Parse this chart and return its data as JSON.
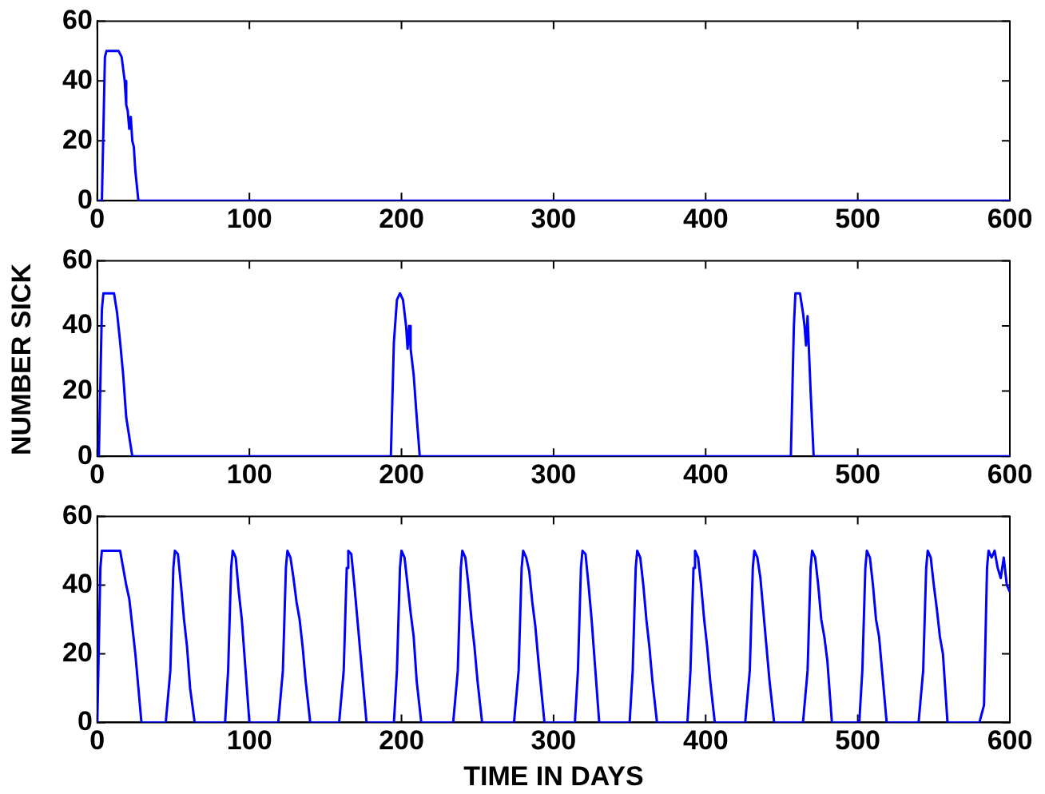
{
  "chart_data": [
    {
      "type": "line",
      "xlim": [
        0,
        600
      ],
      "xticks": [
        0,
        100,
        200,
        300,
        400,
        500,
        600
      ],
      "ylim": [
        0,
        60
      ],
      "yticks": [
        0,
        20,
        40,
        60
      ],
      "grid": false,
      "legend": false,
      "marker": "none",
      "series": [
        {
          "color": "#0000ff",
          "x": [
            0,
            3,
            5,
            6,
            14,
            16,
            18,
            19,
            20,
            21,
            22,
            23,
            24,
            25,
            27,
            600
          ],
          "values": [
            0,
            0,
            48,
            50,
            50,
            48,
            40,
            32,
            30,
            24,
            28,
            20,
            18,
            10,
            0,
            0
          ]
        }
      ]
    },
    {
      "type": "line",
      "ylabel": "NUMBER SICK",
      "xlim": [
        0,
        600
      ],
      "xticks": [
        0,
        100,
        200,
        300,
        400,
        500,
        600
      ],
      "ylim": [
        0,
        60
      ],
      "yticks": [
        0,
        20,
        40,
        60
      ],
      "grid": false,
      "legend": false,
      "marker": "none",
      "series": [
        {
          "color": "#0000ff",
          "x": [
            0,
            1,
            3,
            4,
            11,
            13,
            15,
            17,
            19,
            23,
            193,
            195,
            197,
            199,
            201,
            203,
            204,
            205,
            206,
            208,
            210,
            212,
            456,
            458,
            459,
            462,
            464,
            465,
            466,
            467,
            469,
            471,
            600
          ],
          "values": [
            0,
            0,
            45,
            50,
            50,
            44,
            35,
            25,
            12,
            0,
            0,
            35,
            48,
            50,
            48,
            40,
            33,
            40,
            33,
            25,
            12,
            0,
            0,
            40,
            50,
            50,
            44,
            40,
            34,
            43,
            20,
            0,
            0
          ]
        }
      ]
    },
    {
      "type": "line",
      "xlabel": "TIME IN DAYS",
      "xlim": [
        0,
        600
      ],
      "xticks": [
        0,
        100,
        200,
        300,
        400,
        500,
        600
      ],
      "ylim": [
        0,
        60
      ],
      "yticks": [
        0,
        20,
        40,
        60
      ],
      "grid": false,
      "legend": false,
      "marker": "none",
      "series": [
        {
          "color": "#0000ff",
          "x": [
            0,
            2,
            3,
            15,
            17,
            19,
            21,
            23,
            25,
            29,
            45,
            48,
            50,
            51,
            53,
            55,
            57,
            59,
            61,
            64,
            84,
            86,
            88,
            89,
            91,
            93,
            95,
            97,
            100,
            119,
            122,
            124,
            125,
            127,
            129,
            131,
            133,
            135,
            137,
            140,
            159,
            162,
            164,
            165,
            167,
            169,
            171,
            173,
            177,
            195,
            197,
            199,
            200,
            202,
            204,
            206,
            208,
            210,
            213,
            234,
            237,
            239,
            240,
            242,
            244,
            246,
            248,
            250,
            253,
            274,
            277,
            279,
            280,
            282,
            284,
            286,
            288,
            290,
            294,
            314,
            316,
            318,
            319,
            321,
            323,
            325,
            327,
            330,
            350,
            352,
            354,
            355,
            357,
            359,
            361,
            363,
            365,
            368,
            388,
            390,
            392,
            393,
            395,
            397,
            399,
            401,
            403,
            406,
            426,
            429,
            431,
            432,
            434,
            436,
            438,
            440,
            442,
            445,
            464,
            467,
            469,
            470,
            472,
            474,
            476,
            478,
            480,
            483,
            501,
            503,
            505,
            506,
            508,
            510,
            512,
            514,
            516,
            519,
            540,
            543,
            545,
            546,
            548,
            550,
            552,
            554,
            556,
            559,
            580,
            583,
            585,
            586,
            588,
            590,
            592,
            594,
            596,
            598,
            600
          ],
          "values": [
            0,
            45,
            50,
            50,
            45,
            40,
            36,
            28,
            20,
            0,
            0,
            15,
            45,
            50,
            49,
            40,
            30,
            22,
            10,
            0,
            0,
            15,
            45,
            50,
            48,
            38,
            30,
            18,
            0,
            0,
            15,
            45,
            50,
            48,
            42,
            35,
            30,
            22,
            12,
            0,
            0,
            15,
            45,
            50,
            49,
            40,
            30,
            20,
            0,
            0,
            15,
            45,
            50,
            48,
            40,
            32,
            25,
            12,
            0,
            0,
            15,
            45,
            50,
            48,
            40,
            30,
            22,
            12,
            0,
            0,
            15,
            45,
            50,
            48,
            44,
            35,
            28,
            18,
            0,
            0,
            15,
            45,
            50,
            49,
            40,
            30,
            18,
            0,
            0,
            15,
            45,
            50,
            48,
            40,
            30,
            22,
            12,
            0,
            0,
            15,
            45,
            50,
            48,
            40,
            30,
            22,
            12,
            0,
            0,
            15,
            45,
            50,
            48,
            42,
            32,
            22,
            12,
            0,
            0,
            15,
            45,
            50,
            48,
            40,
            30,
            25,
            18,
            0,
            0,
            15,
            45,
            50,
            48,
            40,
            30,
            25,
            15,
            0,
            0,
            15,
            45,
            50,
            48,
            40,
            33,
            25,
            20,
            0,
            0,
            5,
            45,
            50,
            48,
            50,
            45,
            42,
            48,
            40,
            38
          ]
        }
      ]
    }
  ]
}
